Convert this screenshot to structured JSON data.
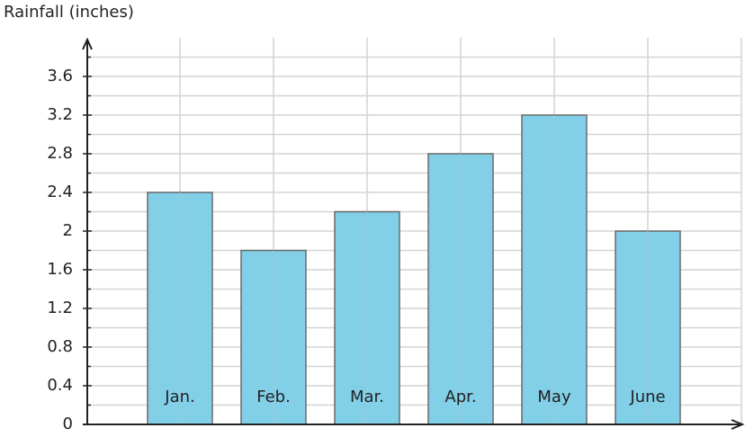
{
  "chart_data": {
    "type": "bar",
    "y_label": "Rainfall (inches)",
    "categories": [
      "Jan.",
      "Feb.",
      "Mar.",
      "Apr.",
      "May",
      "June"
    ],
    "values": [
      2.4,
      1.8,
      2.2,
      2.8,
      3.2,
      2.0
    ],
    "color": "#82cfe8",
    "ylim": [
      0,
      4
    ],
    "yticks": [
      0,
      0.4,
      0.8,
      1.2,
      1.6,
      2,
      2.4,
      2.8,
      3.2,
      3.6
    ],
    "minor_yticks": [
      0.2,
      0.6,
      1.0,
      1.4,
      1.8,
      2.2,
      2.6,
      3.0,
      3.4,
      3.8
    ],
    "grid": true
  }
}
